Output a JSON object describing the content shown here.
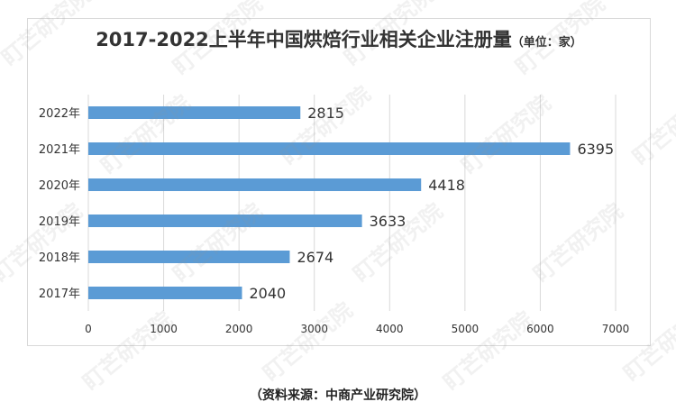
{
  "title": "2017-2022上半年中国烘焙行业相关企业注册量",
  "unit": "（单位：家）",
  "source": "（资料来源：中商产业研究院）",
  "watermark_text": "盯芒研究院",
  "colors": {
    "bar": "#5b9bd5",
    "grid": "#d9d9d9",
    "text": "#333333"
  },
  "chart_data": {
    "type": "bar",
    "orientation": "horizontal",
    "categories": [
      "2022年",
      "2021年",
      "2020年",
      "2019年",
      "2018年",
      "2017年"
    ],
    "values": [
      2815,
      6395,
      4418,
      3633,
      2674,
      2040
    ],
    "xlim": [
      0,
      7000
    ],
    "xticks": [
      0,
      1000,
      2000,
      3000,
      4000,
      5000,
      6000,
      7000
    ],
    "grid": true,
    "legend": "none"
  }
}
